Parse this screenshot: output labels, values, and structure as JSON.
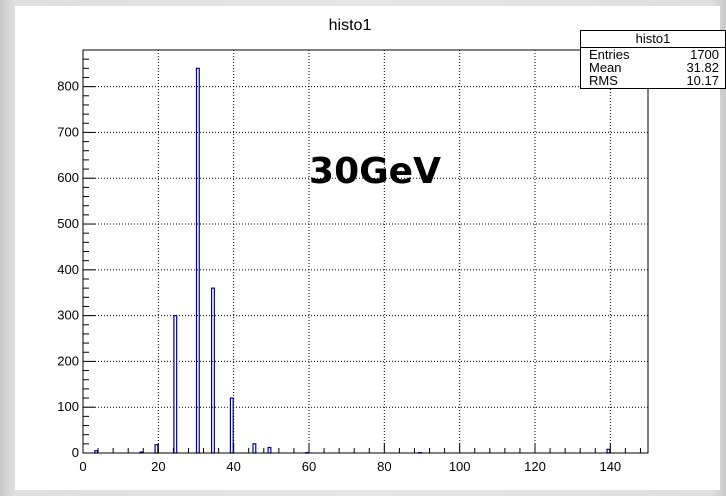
{
  "chart_data": {
    "type": "bar",
    "title": "histo1",
    "xlabel": "",
    "ylabel": "",
    "xlim": [
      0,
      150
    ],
    "ylim": [
      0,
      880
    ],
    "xticks": [
      0,
      20,
      40,
      60,
      80,
      100,
      120,
      140
    ],
    "yticks": [
      0,
      100,
      200,
      300,
      400,
      500,
      600,
      700,
      800
    ],
    "grid": true,
    "bin_width": 1,
    "bins": [
      {
        "x": 3,
        "value": 5
      },
      {
        "x": 15,
        "value": 2
      },
      {
        "x": 19,
        "value": 18
      },
      {
        "x": 24,
        "value": 300
      },
      {
        "x": 30,
        "value": 840
      },
      {
        "x": 34,
        "value": 360
      },
      {
        "x": 39,
        "value": 120
      },
      {
        "x": 45,
        "value": 20
      },
      {
        "x": 49,
        "value": 12
      },
      {
        "x": 59,
        "value": 1
      },
      {
        "x": 89,
        "value": 1
      },
      {
        "x": 139,
        "value": 8
      }
    ],
    "annotation": "30GeV",
    "stats": {
      "title": "histo1",
      "rows": [
        {
          "label": "Entries",
          "value": "1700"
        },
        {
          "label": "Mean",
          "value": "31.82"
        },
        {
          "label": "RMS",
          "value": "10.17"
        }
      ]
    },
    "colors": {
      "line": "#0000a0",
      "grid": "#000000",
      "frame": "#000000"
    }
  }
}
